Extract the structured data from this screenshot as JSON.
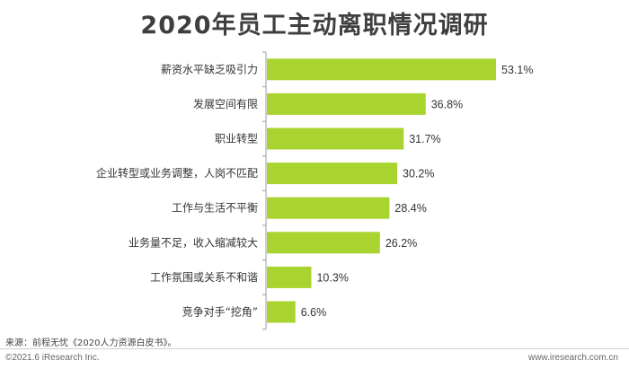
{
  "chart_data": {
    "type": "bar",
    "orientation": "horizontal",
    "title": "2020年员工主动离职情况调研",
    "categories": [
      "薪资水平缺乏吸引力",
      "发展空间有限",
      "职业转型",
      "企业转型或业务调整，人岗不匹配",
      "工作与生活不平衡",
      "业务量不足，收入缩减较大",
      "工作氛围或关系不和谐",
      "竞争对手“挖角”"
    ],
    "values": [
      53.1,
      36.8,
      31.7,
      30.2,
      28.4,
      26.2,
      10.3,
      6.6
    ],
    "value_labels": [
      "53.1%",
      "36.8%",
      "31.7%",
      "30.2%",
      "28.4%",
      "26.2%",
      "10.3%",
      "6.6%"
    ],
    "unit": "%",
    "xlim": [
      0,
      53.1
    ],
    "grid": false,
    "legend": "none",
    "bar_color": "#a9d32f",
    "axis_color": "#9e9e9e"
  },
  "footer": {
    "source": "来源：前程无忧《2020人力资源白皮书》。",
    "copyright": "©2021.6 iResearch Inc.",
    "website": "www.iresearch.com.cn"
  }
}
